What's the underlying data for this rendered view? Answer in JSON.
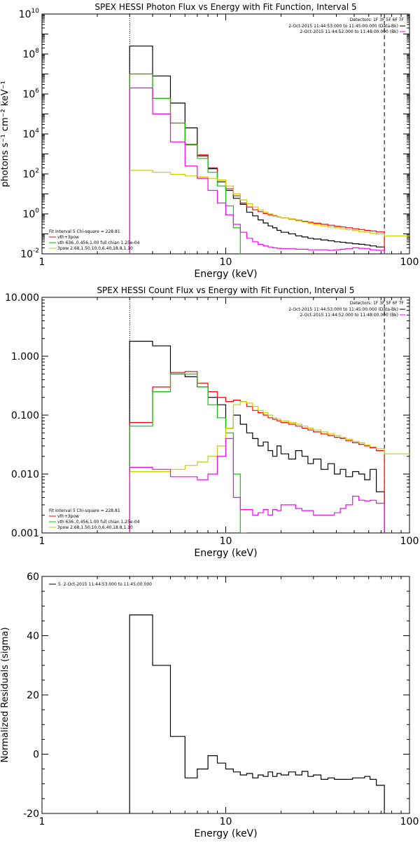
{
  "chart_data": [
    {
      "type": "line",
      "step": true,
      "title": "SPEX HESSI Photon Flux vs Energy with Fit Function, Interval 5",
      "xlabel": "Energy (keV)",
      "ylabel": "photons s⁻¹ cm⁻² keV⁻¹",
      "xscale": "log",
      "yscale": "log",
      "xlim": [
        1,
        100
      ],
      "ylim": [
        0.01,
        10000000000.0
      ],
      "x_ticks": [
        {
          "v": 1,
          "label": "1"
        },
        {
          "v": 10,
          "label": "10"
        },
        {
          "v": 100,
          "label": "100"
        }
      ],
      "y_ticks": [
        {
          "v": 0.01,
          "base": "10",
          "exp": "-2"
        },
        {
          "v": 1,
          "base": "10",
          "exp": "0"
        },
        {
          "v": 100,
          "base": "10",
          "exp": "2"
        },
        {
          "v": 10000,
          "base": "10",
          "exp": "4"
        },
        {
          "v": 1000000,
          "base": "10",
          "exp": "6"
        },
        {
          "v": 100000000,
          "base": "10",
          "exp": "8"
        },
        {
          "v": 10000000000,
          "base": "10",
          "exp": "10"
        }
      ],
      "vlines": [
        {
          "x": 3.0,
          "style": "dotted"
        },
        {
          "x": 73,
          "style": "dashed"
        }
      ],
      "legend_top": {
        "position": "top-right",
        "header": "Detectors: 1F 3F 5F 6F 7F",
        "entries": [
          {
            "label": "2-Oct-2015 11:44:53.000 to 11:45:00.000 (Data-Bk)",
            "color": "#000000"
          },
          {
            "label": "2-Oct-2015 11:44:52.000 to 11:48:00.000 (Bk)",
            "color": "#ff00ff"
          }
        ]
      },
      "legend_bottom": {
        "position": "bottom-left",
        "header": "Fit Interval 5   Chi-square = 228.81",
        "entries": [
          {
            "label": "vth+3pow",
            "color": "#ff0000"
          },
          {
            "label": "vth 636.,0.456,1.00  full chian 1.25e-04",
            "color": "#00cc00"
          },
          {
            "label": "3pow 2.68,1.50,10.0,6.40,18.8,1.10",
            "color": "#cccc00"
          }
        ]
      },
      "edges": [
        3.0,
        4.0,
        5.0,
        6.0,
        7.0,
        8.0,
        9.0,
        10.0,
        11.0,
        12.0,
        13.0,
        14.0,
        15.0,
        16.0,
        17.0,
        18.0,
        19.0,
        20.0,
        22.0,
        24.0,
        26.0,
        28.0,
        30.0,
        33.0,
        36.0,
        39.0,
        42.0,
        45.0,
        49.0,
        53.0,
        57.0,
        61.0,
        66.0,
        73.0
      ],
      "series": [
        {
          "key": "data",
          "color": "#000000",
          "x_end": 73,
          "values": [
            250000000,
            8000000,
            350000,
            20000,
            800,
            180,
            40,
            15,
            6,
            3,
            1.2,
            0.8,
            0.5,
            0.35,
            0.25,
            0.2,
            0.15,
            0.12,
            0.1,
            0.08,
            0.07,
            0.06,
            0.055,
            0.05,
            0.045,
            0.04,
            0.038,
            0.035,
            0.032,
            0.03,
            0.028,
            0.025,
            0.022
          ]
        },
        {
          "key": "fit",
          "color": "#ff0000",
          "x_end": 73,
          "values": [
            10000000,
            600000,
            35000,
            3000,
            900,
            200,
            50,
            18,
            8,
            3.5,
            2.2,
            1.6,
            1.3,
            1.05,
            0.9,
            0.8,
            0.7,
            0.62,
            0.55,
            0.48,
            0.42,
            0.38,
            0.34,
            0.3,
            0.27,
            0.24,
            0.22,
            0.2,
            0.18,
            0.165,
            0.15,
            0.14,
            0.125
          ]
        },
        {
          "key": "vth",
          "color": "#00cc00",
          "x_end": 13.0,
          "values": [
            10000000,
            600000,
            35000,
            2800,
            600,
            120,
            25,
            2.5,
            0.2,
            0.005
          ]
        },
        {
          "key": "pow",
          "color": "#cccc00",
          "x_end": 100,
          "values": [
            150,
            120,
            95,
            80,
            70,
            60,
            50,
            25,
            10,
            5,
            3.2,
            2.2,
            1.6,
            1.2,
            1.0,
            0.85,
            0.72,
            0.62,
            0.53,
            0.45,
            0.39,
            0.34,
            0.29,
            0.25,
            0.22,
            0.2,
            0.18,
            0.16,
            0.145,
            0.13,
            0.12,
            0.11,
            0.1,
            0.08
          ]
        },
        {
          "key": "bk",
          "color": "#ff00ff",
          "x_end": 73,
          "values": [
            2000000,
            100000,
            4000,
            250,
            60,
            15,
            3.5,
            0.9,
            0.3,
            0.12,
            0.06,
            0.04,
            0.03,
            0.025,
            0.022,
            0.02,
            0.019,
            0.018,
            0.018,
            0.017,
            0.017,
            0.016,
            0.016,
            0.016,
            0.015,
            0.016,
            0.017,
            0.018,
            0.02,
            0.019,
            0.018,
            0.016,
            0.015
          ]
        }
      ]
    },
    {
      "type": "line",
      "step": true,
      "title": "SPEX HESSI Count Flux vs Energy with Fit Function, Interval 5",
      "xlabel": "Energy (keV)",
      "ylabel": "",
      "xscale": "log",
      "yscale": "log",
      "xlim": [
        1,
        100
      ],
      "ylim": [
        0.001,
        10
      ],
      "x_ticks": [
        {
          "v": 1,
          "label": "1"
        },
        {
          "v": 10,
          "label": "10"
        },
        {
          "v": 100,
          "label": "100"
        }
      ],
      "y_ticks": [
        {
          "v": 0.001,
          "label": "0.001"
        },
        {
          "v": 0.01,
          "label": "0.010"
        },
        {
          "v": 0.1,
          "label": "0.100"
        },
        {
          "v": 1,
          "label": "1.000"
        },
        {
          "v": 10,
          "label": "10.000"
        }
      ],
      "vlines": [
        {
          "x": 3.0,
          "style": "dotted"
        },
        {
          "x": 73,
          "style": "dashed"
        }
      ],
      "legend_top": {
        "position": "top-right",
        "header": "Detectors: 1F 3F 5F 6F 7F",
        "entries": [
          {
            "label": "2-Oct-2015 11:44:53.000 to 11:45:00.000 (Data-Bk)",
            "color": "#000000"
          },
          {
            "label": "2-Oct-2015 11:44:52.000 to 11:48:00.000 (Bk)",
            "color": "#ff00ff"
          }
        ]
      },
      "legend_bottom": {
        "position": "bottom-left",
        "header": "Fit Interval 5   Chi-square = 228.81",
        "entries": [
          {
            "label": "vth+3pow",
            "color": "#ff0000"
          },
          {
            "label": "vth 636.,0.456,1.00  full chian 1.25e-04",
            "color": "#00cc00"
          },
          {
            "label": "3pow 2.68,1.50,10.0,6.40,18.8,1.10",
            "color": "#cccc00"
          }
        ]
      },
      "edges": [
        3.0,
        4.0,
        5.0,
        6.0,
        7.0,
        8.0,
        9.0,
        10.0,
        11.0,
        12.0,
        13.0,
        14.0,
        15.0,
        16.0,
        17.0,
        18.0,
        19.0,
        20.0,
        22.0,
        24.0,
        26.0,
        28.0,
        30.0,
        33.0,
        36.0,
        39.0,
        42.0,
        45.0,
        49.0,
        53.0,
        57.0,
        61.0,
        66.0,
        73.0
      ],
      "series": [
        {
          "key": "data",
          "color": "#000000",
          "x_end": 73,
          "values": [
            1.8,
            1.5,
            0.5,
            0.45,
            0.3,
            0.2,
            0.15,
            0.06,
            0.1,
            0.07,
            0.05,
            0.04,
            0.03,
            0.035,
            0.025,
            0.02,
            0.03,
            0.022,
            0.018,
            0.025,
            0.02,
            0.015,
            0.018,
            0.012,
            0.015,
            0.01,
            0.012,
            0.009,
            0.011,
            0.01,
            0.008,
            0.012,
            0.005
          ]
        },
        {
          "key": "fit",
          "color": "#ff0000",
          "x_end": 73,
          "values": [
            0.075,
            0.3,
            0.53,
            0.55,
            0.35,
            0.25,
            0.2,
            0.17,
            0.18,
            0.17,
            0.14,
            0.12,
            0.11,
            0.1,
            0.09,
            0.085,
            0.08,
            0.075,
            0.07,
            0.065,
            0.06,
            0.056,
            0.052,
            0.048,
            0.045,
            0.042,
            0.04,
            0.037,
            0.034,
            0.032,
            0.03,
            0.028,
            0.025
          ]
        },
        {
          "key": "vth",
          "color": "#00cc00",
          "x_end": 13.0,
          "values": [
            0.065,
            0.25,
            0.5,
            0.5,
            0.3,
            0.15,
            0.09,
            0.05,
            0.01,
            0.001
          ]
        },
        {
          "key": "pow",
          "color": "#cccc00",
          "x_end": 100,
          "values": [
            0.011,
            0.011,
            0.012,
            0.014,
            0.016,
            0.02,
            0.03,
            0.06,
            0.15,
            0.17,
            0.16,
            0.14,
            0.12,
            0.11,
            0.1,
            0.09,
            0.085,
            0.08,
            0.075,
            0.07,
            0.065,
            0.06,
            0.056,
            0.052,
            0.048,
            0.045,
            0.042,
            0.039,
            0.036,
            0.034,
            0.031,
            0.029,
            0.027,
            0.022
          ]
        },
        {
          "key": "bk",
          "color": "#ff00ff",
          "x_end": 73,
          "values": [
            0.013,
            0.012,
            0.009,
            0.009,
            0.008,
            0.01,
            0.02,
            0.04,
            0.004,
            0.0025,
            0.0025,
            0.002,
            0.0022,
            0.0025,
            0.002,
            0.0025,
            0.0024,
            0.003,
            0.003,
            0.0026,
            0.0024,
            0.0024,
            0.002,
            0.002,
            0.002,
            0.0022,
            0.0026,
            0.003,
            0.0042,
            0.0036,
            0.0035,
            0.0036,
            0.0032
          ]
        }
      ]
    },
    {
      "type": "line",
      "step": true,
      "title": "",
      "xlabel": "Energy (keV)",
      "ylabel": "Normalized Residuals (sigma)",
      "xscale": "log",
      "yscale": "linear",
      "xlim": [
        1,
        100
      ],
      "ylim": [
        -20,
        60
      ],
      "x_ticks": [
        {
          "v": 1,
          "label": "1"
        },
        {
          "v": 10,
          "label": "10"
        },
        {
          "v": 100,
          "label": "100"
        }
      ],
      "y_ticks": [
        {
          "v": -20,
          "label": "-20"
        },
        {
          "v": 0,
          "label": "0"
        },
        {
          "v": 20,
          "label": "20"
        },
        {
          "v": 40,
          "label": "40"
        },
        {
          "v": 60,
          "label": "60"
        }
      ],
      "vlines": [],
      "legend_top": {
        "position": "top-left",
        "header": "",
        "entries": [
          {
            "label": "5. 2-Oct-2015 11:44:53.000 to 11:45:00.000",
            "color": "#000000"
          }
        ]
      },
      "legend_bottom": null,
      "edges": [
        3.0,
        4.0,
        5.0,
        6.0,
        7.0,
        8.0,
        9.0,
        10.0,
        11.0,
        12.0,
        13.0,
        14.0,
        15.0,
        16.0,
        17.0,
        18.0,
        19.0,
        20.0,
        22.0,
        24.0,
        26.0,
        28.0,
        30.0,
        33.0,
        36.0,
        39.0,
        42.0,
        45.0,
        49.0,
        53.0,
        57.0,
        61.0,
        66.0,
        73.0
      ],
      "series": [
        {
          "key": "resid",
          "color": "#000000",
          "x_end": 73,
          "values": [
            47,
            30,
            6,
            -8,
            -5,
            -0.5,
            -3,
            -5,
            -6,
            -7,
            -6.5,
            -8,
            -7,
            -7.5,
            -6,
            -7.5,
            -6.5,
            -7,
            -6,
            -7,
            -5.8,
            -7.5,
            -7,
            -8.5,
            -8,
            -8.5,
            -8.5,
            -8.5,
            -8,
            -8,
            -7.5,
            -8.5,
            -10.5
          ]
        }
      ]
    }
  ]
}
